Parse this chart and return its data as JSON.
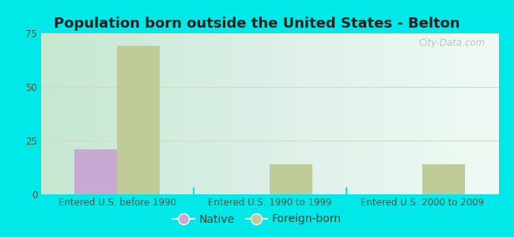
{
  "title": "Population born outside the United States - Belton",
  "categories": [
    "Entered U.S. before 1990",
    "Entered U.S. 1990 to 1999",
    "Entered U.S. 2000 to 2009"
  ],
  "native_values": [
    21,
    0,
    0
  ],
  "foreign_values": [
    69,
    14,
    14
  ],
  "native_color": "#c9a8d4",
  "foreign_color": "#bfcc99",
  "background_outer": "#00e8e8",
  "background_inner_left": "#d4eedc",
  "background_inner_right": "#e8f8f0",
  "ylim": [
    0,
    75
  ],
  "yticks": [
    0,
    25,
    50,
    75
  ],
  "grid_color": "#ccddcc",
  "title_fontsize": 13,
  "tick_fontsize": 8.5,
  "legend_fontsize": 10,
  "bar_width": 0.28,
  "watermark": "City-Data.com"
}
